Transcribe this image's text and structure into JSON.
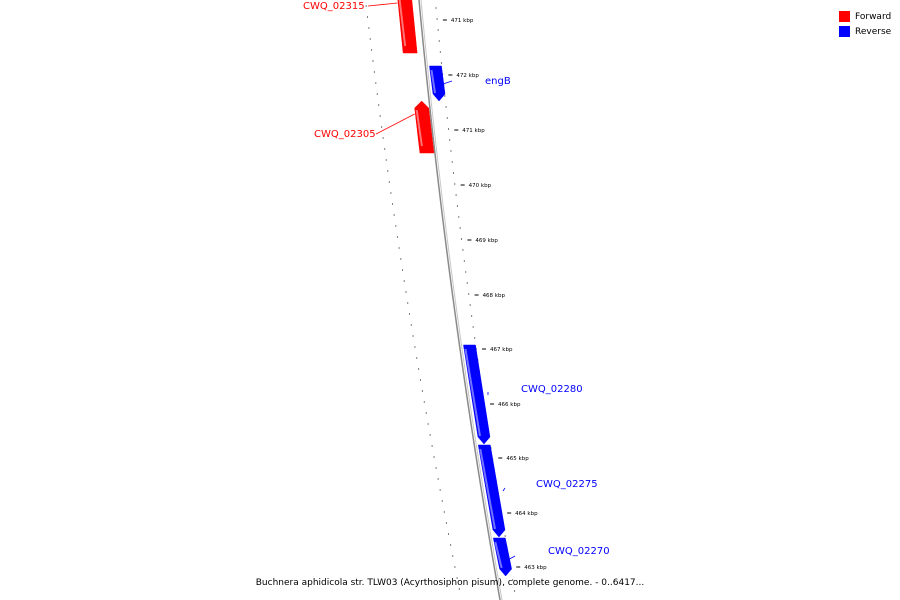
{
  "colors": {
    "forward": "#ff0000",
    "reverse": "#0000ff",
    "backbone": "#8a8a8a"
  },
  "legend": [
    {
      "label": "Forward",
      "color": "#ff0000"
    },
    {
      "label": "Reverse",
      "color": "#0000ff"
    }
  ],
  "ticks": [
    "471 kbp",
    "472 kbp",
    "471 kbp",
    "470 kbp",
    "469 kbp",
    "468 kbp",
    "467 kbp",
    "466 kbp",
    "465 kbp",
    "464 kbp",
    "463 kbp"
  ],
  "genes": [
    {
      "name": "CWQ_02315",
      "strand": "forward"
    },
    {
      "name": "engB",
      "strand": "reverse"
    },
    {
      "name": "CWQ_02305",
      "strand": "forward"
    },
    {
      "name": "CWQ_02280",
      "strand": "reverse"
    },
    {
      "name": "CWQ_02275",
      "strand": "reverse"
    },
    {
      "name": "CWQ_02270",
      "strand": "reverse"
    }
  ],
  "caption": "Buchnera aphidicola str. TLW03 (Acyrthosiphon pisum), complete genome. - 0..6417..."
}
